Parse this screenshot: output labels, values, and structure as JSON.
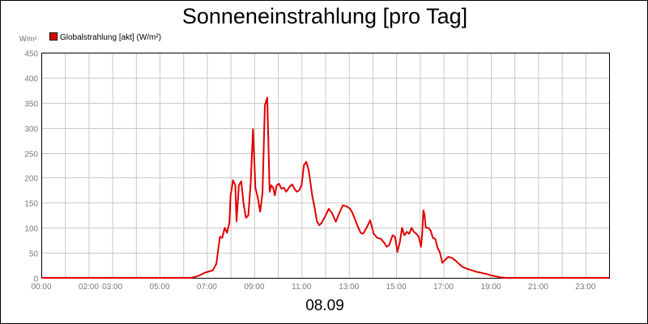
{
  "chart_data": {
    "type": "line",
    "title": "Sonneneinstrahlung [pro Tag]",
    "ylabel": "W/m²",
    "xlabel": "08.09",
    "ylim": [
      0,
      450
    ],
    "xlim": [
      0,
      24
    ],
    "grid": true,
    "legend_position": "top-left",
    "y_ticks": [
      "0",
      "50",
      "100",
      "150",
      "200",
      "250",
      "300",
      "350",
      "400",
      "450"
    ],
    "x_tick_labels": [
      {
        "hour": 0,
        "label": "00:00"
      },
      {
        "hour": 2,
        "label": "02:00"
      },
      {
        "hour": 3,
        "label": "03:00"
      },
      {
        "hour": 5,
        "label": "05:00"
      },
      {
        "hour": 7,
        "label": "07:00"
      },
      {
        "hour": 9,
        "label": "09:00"
      },
      {
        "hour": 11,
        "label": "11:00"
      },
      {
        "hour": 13,
        "label": "13:00"
      },
      {
        "hour": 15,
        "label": "15:00"
      },
      {
        "hour": 17,
        "label": "17:00"
      },
      {
        "hour": 19,
        "label": "19:00"
      },
      {
        "hour": 21,
        "label": "21:00"
      },
      {
        "hour": 23,
        "label": "23:00"
      }
    ],
    "series": [
      {
        "name": "Globalstrahlung [akt] (W/m²)",
        "color": "#e00000",
        "x": [
          0,
          6.3,
          6.5,
          6.7,
          6.9,
          7.1,
          7.25,
          7.4,
          7.55,
          7.65,
          7.75,
          7.85,
          7.95,
          8.0,
          8.05,
          8.1,
          8.2,
          8.25,
          8.35,
          8.45,
          8.55,
          8.65,
          8.75,
          8.85,
          8.95,
          9.05,
          9.15,
          9.25,
          9.35,
          9.45,
          9.55,
          9.65,
          9.72,
          9.8,
          9.87,
          9.95,
          10.05,
          10.15,
          10.25,
          10.35,
          10.5,
          10.6,
          10.7,
          10.8,
          10.9,
          11.0,
          11.1,
          11.2,
          11.3,
          11.45,
          11.55,
          11.65,
          11.75,
          11.85,
          12.0,
          12.15,
          12.3,
          12.45,
          12.6,
          12.75,
          12.9,
          13.05,
          13.15,
          13.25,
          13.4,
          13.5,
          13.6,
          13.75,
          13.9,
          14.05,
          14.2,
          14.35,
          14.5,
          14.6,
          14.7,
          14.85,
          14.95,
          15.05,
          15.15,
          15.25,
          15.35,
          15.45,
          15.55,
          15.65,
          15.75,
          15.85,
          15.95,
          16.05,
          16.1,
          16.15,
          16.2,
          16.25,
          16.35,
          16.45,
          16.55,
          16.65,
          16.75,
          16.85,
          16.95,
          17.05,
          17.2,
          17.35,
          17.5,
          17.65,
          17.8,
          18.0,
          18.2,
          18.4,
          18.6,
          18.8,
          19.0,
          19.2,
          19.4,
          19.6,
          19.8,
          20.0,
          20.3,
          24.0
        ],
        "y": [
          0,
          0,
          2,
          5,
          10,
          13,
          15,
          28,
          82,
          80,
          100,
          90,
          110,
          165,
          178,
          195,
          185,
          113,
          185,
          193,
          148,
          120,
          125,
          190,
          297,
          180,
          160,
          132,
          170,
          345,
          360,
          172,
          185,
          180,
          165,
          185,
          188,
          178,
          180,
          172,
          182,
          187,
          178,
          172,
          175,
          185,
          225,
          232,
          215,
          165,
          140,
          113,
          105,
          110,
          123,
          138,
          128,
          112,
          130,
          145,
          143,
          138,
          130,
          118,
          100,
          90,
          88,
          100,
          115,
          88,
          80,
          78,
          70,
          62,
          65,
          85,
          82,
          52,
          70,
          100,
          85,
          92,
          88,
          100,
          92,
          88,
          82,
          62,
          90,
          135,
          125,
          100,
          100,
          95,
          80,
          78,
          60,
          50,
          30,
          35,
          42,
          40,
          35,
          28,
          22,
          18,
          15,
          12,
          10,
          8,
          5,
          3,
          1,
          0,
          0,
          0,
          0,
          0
        ]
      }
    ]
  }
}
